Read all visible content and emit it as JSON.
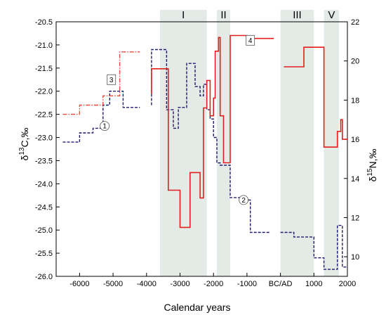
{
  "chart_data": {
    "type": "line",
    "xlabel": "Calendar years",
    "ylabel_left_main": "δ",
    "ylabel_left_sup": "13",
    "ylabel_left_rest": "C,‰",
    "ylabel_right_main": "δ",
    "ylabel_right_sup": "15",
    "ylabel_right_rest": "N,‰",
    "x_ticks": [
      {
        "value": -6000,
        "label": "-6000"
      },
      {
        "value": -5000,
        "label": "-5000"
      },
      {
        "value": -4000,
        "label": "-4000"
      },
      {
        "value": -3000,
        "label": "-3000"
      },
      {
        "value": -2000,
        "label": "-2000"
      },
      {
        "value": -1000,
        "label": "-1000"
      },
      {
        "value": 0,
        "label": "BC/AD"
      },
      {
        "value": 1000,
        "label": "1000"
      },
      {
        "value": 2000,
        "label": "2000"
      }
    ],
    "xlim": [
      -6700,
      2000
    ],
    "ylim_left": [
      -26.0,
      -20.5
    ],
    "ylim_right": [
      9,
      22
    ],
    "left_ticks": [
      "-20.5",
      "-21.0",
      "-21.5",
      "-22.0",
      "-22.5",
      "-23.0",
      "-23.5",
      "-24.0",
      "-24.5",
      "-25.0",
      "-25.5",
      "-26.0"
    ],
    "right_ticks": [
      "10",
      "12",
      "14",
      "16",
      "18",
      "20",
      "22"
    ],
    "bands": [
      {
        "label": "I",
        "x0": -3600,
        "x1": -2200
      },
      {
        "label": "II",
        "x0": -1900,
        "x1": -1500
      },
      {
        "label": "III",
        "x0": 0,
        "x1": 1000
      },
      {
        "label": "V",
        "x0": 1300,
        "x1": 1750
      }
    ],
    "markers": [
      {
        "label": "1",
        "x": -5250,
        "y_left": -22.75
      },
      {
        "label": "2",
        "x": -1100,
        "y_left": -24.35
      },
      {
        "label": "3",
        "x": -5050,
        "y_left": -21.75
      },
      {
        "label": "4",
        "x": -900,
        "y_left": -20.9
      }
    ],
    "series": [
      {
        "axis": "left",
        "color": "#1e1b6e",
        "style": "dashed",
        "segments": [
          [
            [
              -6500,
              -23.1
            ],
            [
              -6000,
              -23.1
            ],
            [
              -6000,
              -22.9
            ],
            [
              -5600,
              -22.9
            ],
            [
              -5600,
              -22.8
            ],
            [
              -5300,
              -22.8
            ],
            [
              -5300,
              -22.3
            ],
            [
              -5100,
              -22.3
            ],
            [
              -5100,
              -22.0
            ],
            [
              -4700,
              -22.0
            ],
            [
              -4700,
              -22.35
            ],
            [
              -4200,
              -22.35
            ]
          ],
          [
            [
              -3850,
              -22.3
            ],
            [
              -3850,
              -21.1
            ],
            [
              -3400,
              -21.1
            ],
            [
              -3400,
              -22.4
            ],
            [
              -3200,
              -22.4
            ],
            [
              -3200,
              -22.8
            ],
            [
              -3050,
              -22.8
            ],
            [
              -3050,
              -22.35
            ],
            [
              -2800,
              -22.35
            ],
            [
              -2800,
              -21.4
            ],
            [
              -2550,
              -21.4
            ],
            [
              -2550,
              -21.9
            ],
            [
              -2400,
              -21.9
            ],
            [
              -2400,
              -22.1
            ],
            [
              -2300,
              -22.1
            ],
            [
              -2300,
              -21.85
            ],
            [
              -2200,
              -21.85
            ],
            [
              -2200,
              -22.4
            ],
            [
              -2100,
              -22.4
            ],
            [
              -2100,
              -22.6
            ],
            [
              -2000,
              -22.6
            ],
            [
              -2000,
              -23.0
            ],
            [
              -1900,
              -23.0
            ],
            [
              -1900,
              -23.55
            ],
            [
              -1800,
              -23.55
            ],
            [
              -1800,
              -23.6
            ],
            [
              -1500,
              -23.6
            ],
            [
              -1500,
              -24.3
            ],
            [
              -1100,
              -24.3
            ],
            [
              -1100,
              -24.35
            ],
            [
              -900,
              -24.35
            ],
            [
              -900,
              -25.05
            ],
            [
              -300,
              -25.05
            ]
          ],
          [
            [
              0,
              -25.05
            ],
            [
              400,
              -25.05
            ],
            [
              400,
              -25.15
            ],
            [
              1000,
              -25.15
            ],
            [
              1000,
              -25.6
            ],
            [
              1300,
              -25.6
            ],
            [
              1300,
              -25.85
            ],
            [
              1700,
              -25.85
            ],
            [
              1700,
              -24.9
            ],
            [
              1850,
              -24.9
            ],
            [
              1850,
              -25.8
            ],
            [
              2000,
              -25.8
            ]
          ]
        ]
      },
      {
        "axis": "left",
        "color": "#e8493a",
        "style": "dashdot",
        "segments": [
          [
            [
              -6500,
              -22.5
            ],
            [
              -6000,
              -22.5
            ],
            [
              -6000,
              -22.3
            ],
            [
              -5300,
              -22.3
            ],
            [
              -5300,
              -22.1
            ],
            [
              -4800,
              -22.1
            ],
            [
              -4800,
              -21.15
            ],
            [
              -4200,
              -21.15
            ]
          ]
        ]
      },
      {
        "axis": "right",
        "color": "#e41e1e",
        "style": "solid",
        "segments": [
          [
            [
              -3850,
              18.3
            ],
            [
              -3850,
              19.6
            ],
            [
              -3350,
              19.6
            ],
            [
              -3350,
              13.4
            ],
            [
              -3000,
              13.4
            ],
            [
              -3000,
              11.5
            ],
            [
              -2700,
              11.5
            ],
            [
              -2700,
              14.3
            ],
            [
              -2400,
              14.3
            ],
            [
              -2400,
              13.0
            ],
            [
              -2300,
              13.0
            ],
            [
              -2300,
              17.6
            ],
            [
              -2200,
              17.6
            ],
            [
              -2200,
              19.0
            ],
            [
              -2100,
              19.0
            ],
            [
              -2100,
              17.2
            ],
            [
              -2000,
              17.2
            ],
            [
              -2000,
              18.1
            ],
            [
              -1950,
              18.1
            ],
            [
              -1950,
              20.5
            ],
            [
              -1850,
              20.5
            ],
            [
              -1850,
              21.2
            ],
            [
              -1800,
              21.2
            ],
            [
              -1800,
              17.2
            ],
            [
              -1700,
              17.2
            ],
            [
              -1700,
              14.8
            ],
            [
              -1500,
              14.8
            ],
            [
              -1500,
              21.3
            ],
            [
              -1000,
              21.3
            ],
            [
              -1000,
              21.15
            ],
            [
              -200,
              21.15
            ]
          ],
          [
            [
              100,
              19.7
            ],
            [
              700,
              19.7
            ],
            [
              700,
              20.7
            ],
            [
              1300,
              20.7
            ],
            [
              1300,
              15.6
            ],
            [
              1700,
              15.6
            ],
            [
              1700,
              16.4
            ],
            [
              1800,
              16.4
            ],
            [
              1800,
              17.0
            ],
            [
              1850,
              17.0
            ],
            [
              1850,
              16.0
            ],
            [
              2000,
              16.0
            ]
          ]
        ]
      }
    ]
  }
}
